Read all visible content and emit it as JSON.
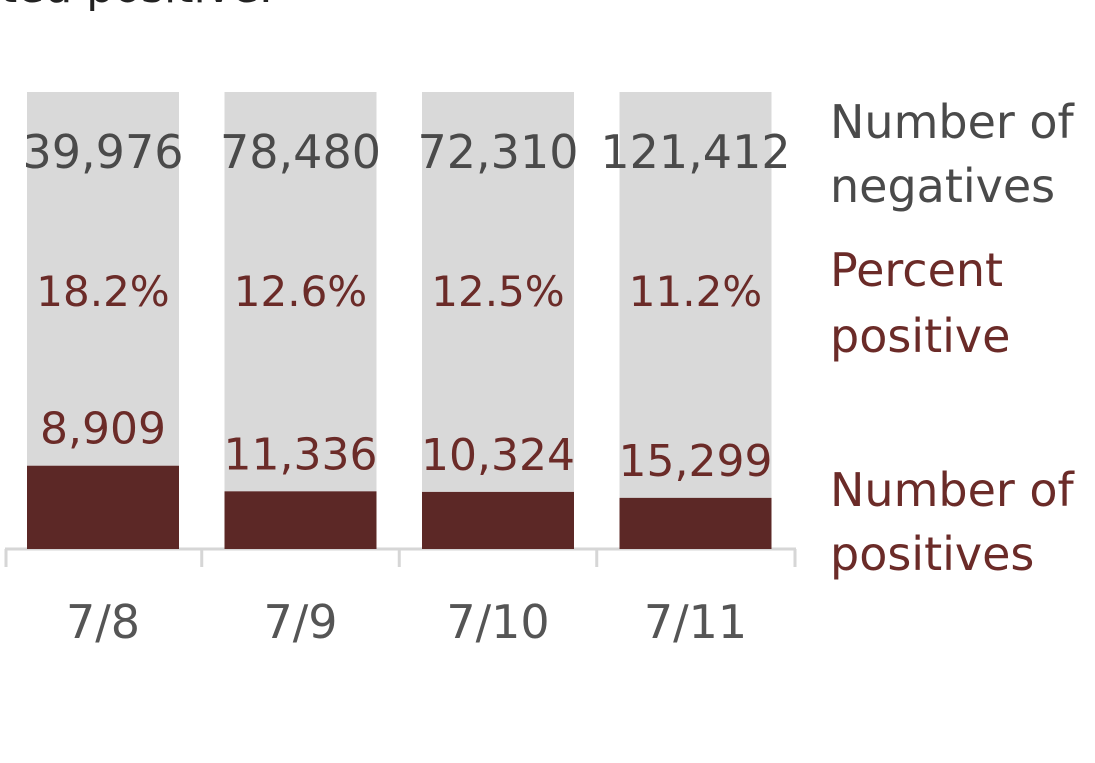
{
  "header_fragment": "ted positive.",
  "colors": {
    "negative_bar": "#d9d9d9",
    "positive_bar": "#5c2826",
    "negative_text": "#4a4a4a",
    "positive_text": "#6b2b28",
    "axis": "#d6d6d6",
    "tick_label": "#555555"
  },
  "chart_data": {
    "type": "bar",
    "stacked": true,
    "normalized": true,
    "categories": [
      "7/8",
      "7/9",
      "7/10",
      "7/11"
    ],
    "series": [
      {
        "name": "Number of positives",
        "values": [
          8909,
          11336,
          10324,
          15299
        ]
      },
      {
        "name": "Number of negatives",
        "values": [
          39976,
          78480,
          72310,
          121412
        ]
      }
    ],
    "value_labels": {
      "negatives": [
        "39,976",
        "78,480",
        "72,310",
        "121,412"
      ],
      "percent_positive": [
        "18.2%",
        "12.6%",
        "12.5%",
        "11.2%"
      ],
      "positives": [
        "8,909",
        "11,336",
        "10,324",
        "15,299"
      ]
    },
    "legend": {
      "placement": "right",
      "negatives_label": [
        "Number of",
        "negatives"
      ],
      "percent_label": [
        "Percent",
        "positive"
      ],
      "positives_label": [
        "Number of",
        "positives"
      ]
    },
    "title": "",
    "xlabel": "",
    "ylabel": "",
    "ylim": [
      0,
      100
    ],
    "grid": false
  }
}
